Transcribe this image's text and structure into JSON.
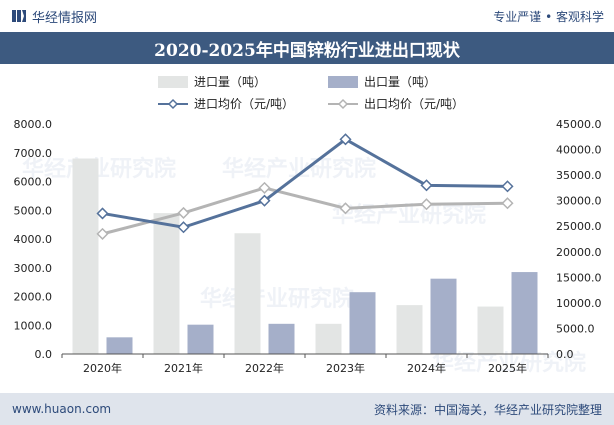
{
  "header": {
    "brand": "华经情报网",
    "tagline": "专业严谨 • 客观科学"
  },
  "title": "2020-2025年中国锌粉行业进出口现状",
  "footer": {
    "website": "www.huaon.com",
    "source": "资料来源：中国海关，华经产业研究院整理"
  },
  "watermark": "华经产业研究院",
  "colors": {
    "header_bar": "#3d5a80",
    "import_volume": "#e3e5e4",
    "export_volume": "#a5afc9",
    "import_price": "#55729b",
    "export_price": "#b4b4b4"
  },
  "chart_data": {
    "type": "bar",
    "categories": [
      "2020年",
      "2021年",
      "2022年",
      "2023年",
      "2024年",
      "2025年"
    ],
    "series": [
      {
        "name": "进口量（吨）",
        "type": "bar",
        "axis": "left",
        "values": [
          6800,
          4900,
          4200,
          1050,
          1700,
          1650
        ]
      },
      {
        "name": "出口量（吨）",
        "type": "bar",
        "axis": "left",
        "values": [
          580,
          1020,
          1050,
          2150,
          2620,
          2850
        ]
      },
      {
        "name": "进口均价（元/吨）",
        "type": "line",
        "axis": "right",
        "values": [
          27500,
          24800,
          30000,
          42000,
          33000,
          32800
        ]
      },
      {
        "name": "出口均价（元/吨）",
        "type": "line",
        "axis": "right",
        "values": [
          23500,
          27600,
          32500,
          28500,
          29300,
          29500
        ]
      }
    ],
    "y_left": {
      "min": 0,
      "max": 8000,
      "step": 1000,
      "tick_labels": [
        "0.0",
        "1000.0",
        "2000.0",
        "3000.0",
        "4000.0",
        "5000.0",
        "6000.0",
        "7000.0",
        "8000.0"
      ]
    },
    "y_right": {
      "min": 0,
      "max": 45000,
      "step": 5000,
      "tick_labels": [
        "0.0",
        "5000.0",
        "10000.0",
        "15000.0",
        "20000.0",
        "25000.0",
        "30000.0",
        "35000.0",
        "40000.0",
        "45000.0"
      ]
    },
    "legend_position": "top",
    "grid": false
  }
}
